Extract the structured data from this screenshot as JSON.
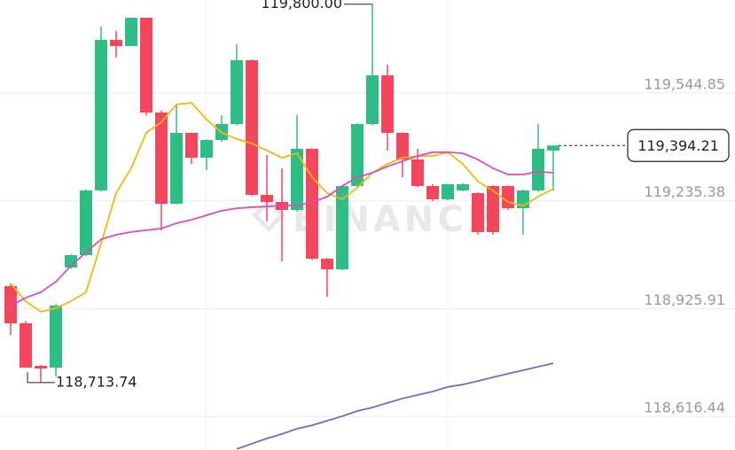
{
  "chart_data": {
    "type": "candlestick",
    "watermark": "BINANCE",
    "categories": [
      null,
      null,
      null,
      null,
      null,
      null,
      null,
      null,
      null,
      null,
      null,
      null,
      null,
      null,
      null,
      null,
      null,
      null,
      null,
      null,
      null,
      null,
      null,
      null,
      null,
      null,
      null,
      null,
      null,
      null,
      null,
      null,
      null,
      null,
      null,
      null,
      null
    ],
    "up_color": "#2ebd85",
    "down_color": "#f6465d",
    "open": [
      118990.5,
      118883.7,
      118761.6,
      118756.5,
      119043.9,
      119079.5,
      119265.2,
      119697.5,
      119679.7,
      119761.0,
      119488.9,
      119227.0,
      119430.5,
      119359.3,
      119410.1,
      119455.9,
      119639.0,
      119252.4,
      119232.1,
      119209.2,
      119384.7,
      119069.3,
      119038.8,
      119277.9,
      119455.9,
      119595.7,
      119430.5,
      119354.2,
      119277.9,
      119239.7,
      119265.2,
      119257.5,
      119277.9,
      119277.9,
      119214.3,
      119265.2,
      119379.6
    ],
    "high": [
      118998.1,
      118890,
      118765,
      118940,
      119082,
      119268,
      119735.6,
      119722.9,
      119761.0,
      119761.0,
      119495,
      119511.8,
      119432,
      119412,
      119481.3,
      119684.7,
      119641,
      119366.9,
      119328.7,
      119481.3,
      119386,
      119071,
      119280,
      119458,
      119800.0,
      119626.3,
      119432,
      119384.7,
      119283.0,
      119285,
      119286,
      119260,
      119280,
      119280,
      119268,
      119455.9,
      119394.21
    ],
    "low": [
      118850.6,
      118756.5,
      118713.74,
      118731.1,
      119040,
      119076,
      119262,
      119646.6,
      119679.7,
      119480,
      119150.7,
      119225,
      119341.4,
      119323.6,
      119405,
      119452,
      119250,
      119176.2,
      119061.7,
      119205,
      119065,
      118960.0,
      119036,
      119275,
      119452,
      119379.6,
      119303.3,
      119274,
      119235,
      119237,
      119262,
      119138.0,
      119138.0,
      119210,
      119138.0,
      119262,
      119265.2
    ],
    "close": [
      118883.7,
      118756.5,
      118753.9,
      118934.5,
      119079.5,
      119265.2,
      119697.5,
      119679.7,
      119761.0,
      119488.9,
      119227.0,
      119430.5,
      119359.3,
      119410.1,
      119455.9,
      119639.0,
      119252.4,
      119232.1,
      119209.2,
      119384.7,
      119069.3,
      119038.8,
      119277.9,
      119455.9,
      119595.7,
      119430.5,
      119354.2,
      119277.9,
      119239.7,
      119283.0,
      119283.0,
      119145.6,
      119145.6,
      119214.3,
      119265.2,
      119384.7,
      119394.21
    ],
    "series": [
      {
        "color": "#f0b90b",
        "values": [
          118998,
          118947,
          118917,
          118927,
          118947,
          118973,
          119113,
          119258,
          119329,
          119431,
          119461,
          119512,
          119517,
          119469,
          119431,
          119413,
          119400,
          119380,
          119359,
          119372,
          119303,
          119258,
          119240,
          119273,
          119316,
          119341,
          119359,
          119364,
          119364,
          119375,
          119341,
          119291,
          119265,
          119232,
          119222,
          119247,
          119270
        ]
      },
      {
        "color": "#d64fbb",
        "values": [
          118934,
          118957,
          118973,
          119003,
          119049,
          119087,
          119125,
          119138,
          119146,
          119151,
          119156,
          119171,
          119181,
          119194,
          119207,
          119214,
          119217,
          119219,
          119222,
          119222,
          119232,
          119247,
          119278,
          119303,
          119316,
          119334,
          119349,
          119364,
          119375,
          119375,
          119372,
          119354,
          119329,
          119311,
          119311,
          119319,
          119316
        ]
      },
      {
        "color": "#7a68bd",
        "values": [
          null,
          null,
          null,
          null,
          null,
          null,
          null,
          null,
          null,
          null,
          null,
          null,
          null,
          null,
          null,
          118523,
          118538,
          118553,
          118566,
          118581,
          118591,
          118604,
          118617,
          118632,
          118642,
          118655,
          118668,
          118678,
          118688,
          118701,
          118708,
          118718,
          118729,
          118739,
          118749,
          118759,
          118769
        ]
      }
    ],
    "ylim": [
      118520,
      119812
    ],
    "yticks": [
      {
        "value": 118616.44,
        "label": "118,616.44"
      },
      {
        "value": 118925.91,
        "label": "118,925.91"
      },
      {
        "value": 119235.38,
        "label": "119,235.38"
      },
      {
        "value": 119544.85,
        "label": "119,544.85"
      }
    ],
    "grid": true,
    "max_label": {
      "value": 119800.0,
      "label": "119,800.00"
    },
    "min_label": {
      "value": 118713.74,
      "label": "118,713.74"
    },
    "last_price": {
      "value": 119394.21,
      "label": "119,394.21"
    }
  }
}
